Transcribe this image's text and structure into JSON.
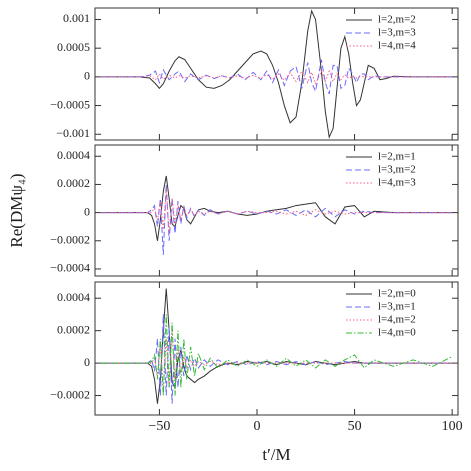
{
  "chart_data": [
    {
      "type": "line",
      "xlim": [
        -83,
        103
      ],
      "ylim": [
        -0.0011,
        0.0012
      ],
      "xticks": [
        -50,
        0,
        50,
        100
      ],
      "yticks": [
        {
          "value": -0.001,
          "label": "−0.001"
        },
        {
          "value": -0.0005,
          "label": "−0.0005"
        },
        0,
        0.0005,
        0.001
      ],
      "legend": "upper right",
      "x": [
        -80,
        -60,
        -55,
        -52,
        -50,
        -48,
        -45,
        -42,
        -40,
        -37,
        -34,
        -30,
        -26,
        -22,
        -18,
        -14,
        -10,
        -6,
        -2,
        2,
        5,
        8,
        11,
        14,
        17,
        20,
        23,
        26,
        28,
        30,
        33,
        35,
        37,
        39,
        41,
        43,
        45,
        47,
        49,
        51,
        53,
        55,
        57,
        60,
        63,
        66,
        70,
        80,
        90,
        100
      ],
      "series": [
        {
          "name": "l=2,m=2",
          "color": "#333333",
          "dash": "solid",
          "values": [
            0,
            0,
            -2e-05,
            -0.00012,
            -0.0002,
            -0.00012,
            0.0001,
            0.00028,
            0.00035,
            0.0003,
            0.00015,
            -5e-05,
            -0.00018,
            -0.0002,
            -0.00015,
            -5e-05,
            0.0001,
            0.00025,
            0.0004,
            0.00045,
            0.0004,
            0.0002,
            -0.0001,
            -0.0005,
            -0.0008,
            -0.0007,
            -0.0001,
            0.0008,
            0.00115,
            0.001,
            0.0001,
            -0.0006,
            -0.00105,
            -0.0009,
            -0.0002,
            0.0005,
            0.0007,
            0.0004,
            -0.0001,
            -0.0005,
            -0.0004,
            -0.0001,
            0.0002,
            0.00015,
            -5e-05,
            -3e-05,
            1e-05,
            0,
            0,
            0
          ]
        },
        {
          "name": "l=3,m=3",
          "color": "#6a6aff",
          "dash": "dashed",
          "values": [
            0,
            0,
            3e-05,
            0.0001,
            -0.0001,
            0.00012,
            -5e-05,
            5e-05,
            0.0001,
            -8e-05,
            5e-05,
            -5e-05,
            3e-05,
            -3e-05,
            2e-05,
            -2e-05,
            5e-05,
            -5e-05,
            8e-05,
            -5e-05,
            0.0001,
            -0.0001,
            0.00012,
            -0.00015,
            0.0001,
            0.00018,
            -0.0002,
            0.00025,
            -0.0001,
            -0.00025,
            0.0003,
            -0.0001,
            -0.0003,
            0.0002,
            0.0002,
            -0.0002,
            -0.00015,
            0.00015,
            5e-05,
            -0.0001,
            5e-05,
            5e-05,
            -5e-05,
            2e-05,
            0,
            0,
            0,
            0,
            0,
            0
          ]
        },
        {
          "name": "l=4,m=4",
          "color": "#ff5a80",
          "dash": "dotted",
          "values": [
            0,
            0,
            2e-05,
            -5e-05,
            5e-05,
            -4e-05,
            3e-05,
            -2e-05,
            2e-05,
            -2e-05,
            2e-05,
            -2e-05,
            2e-05,
            -2e-05,
            2e-05,
            -2e-05,
            2e-05,
            -3e-05,
            3e-05,
            -3e-05,
            4e-05,
            -4e-05,
            5e-05,
            -6e-05,
            7e-05,
            -8e-05,
            0.0001,
            -0.0001,
            8e-05,
            -0.00012,
            0.0001,
            -8e-05,
            0.0001,
            -8e-05,
            6e-05,
            -5e-05,
            4e-05,
            -3e-05,
            2e-05,
            -2e-05,
            1e-05,
            0,
            0,
            0,
            0,
            0,
            0,
            0,
            0,
            0
          ]
        }
      ]
    },
    {
      "type": "line",
      "ylabel": "Re(DMψ₄)",
      "xlim": [
        -83,
        103
      ],
      "ylim": [
        -0.00045,
        0.00048
      ],
      "xticks": [
        -50,
        0,
        50,
        100
      ],
      "yticks": [
        {
          "value": -0.0004,
          "label": "−0.0004"
        },
        {
          "value": -0.0002,
          "label": "−0.0002"
        },
        0,
        0.0002,
        0.0004
      ],
      "legend": "upper right",
      "x": [
        -80,
        -60,
        -56,
        -54,
        -52.5,
        -51,
        -49.5,
        -48,
        -46.5,
        -45,
        -43.5,
        -42,
        -40.5,
        -39,
        -37.5,
        -36,
        -34,
        -32,
        -30,
        -27,
        -24,
        -20,
        -15,
        -10,
        -5,
        0,
        5,
        10,
        15,
        20,
        25,
        30,
        35,
        40,
        45,
        50,
        55,
        60,
        70,
        80,
        90,
        100
      ],
      "series": [
        {
          "name": "l=2,m=1",
          "color": "#333333",
          "dash": "solid",
          "values": [
            0,
            0,
            0,
            -2e-05,
            -8e-05,
            -0.0002,
            -5e-05,
            0.00015,
            0.00026,
            0.0001,
            -8e-05,
            -0.0001,
            -2e-05,
            5e-05,
            3e-05,
            -5e-05,
            -8e-05,
            -3e-05,
            2e-05,
            3e-05,
            1e-05,
            0,
            1e-05,
            -1e-05,
            -2e-05,
            -1e-05,
            1e-05,
            2e-05,
            3e-05,
            5e-05,
            6e-05,
            7e-05,
            -3e-05,
            -8e-05,
            4e-05,
            5e-05,
            -3e-05,
            1e-05,
            0,
            0,
            0,
            0
          ]
        },
        {
          "name": "l=3,m=2",
          "color": "#6a6aff",
          "dash": "dashed",
          "values": [
            0,
            0,
            0,
            2e-05,
            5e-05,
            -0.0001,
            0.0001,
            -0.0003,
            0.0002,
            -0.0002,
            0.0001,
            -0.00015,
            8e-05,
            -8e-05,
            5e-05,
            -4e-05,
            3e-05,
            -3e-05,
            2e-05,
            -2e-05,
            2e-05,
            -1e-05,
            1e-05,
            -1e-05,
            1e-05,
            -1e-05,
            1e-05,
            -1e-05,
            2e-05,
            -2e-05,
            2e-05,
            -3e-05,
            3e-05,
            -3e-05,
            2e-05,
            -1e-05,
            1e-05,
            0,
            0,
            0,
            0,
            0
          ]
        },
        {
          "name": "l=4,m=3",
          "color": "#ff5a80",
          "dash": "dotted",
          "values": [
            0,
            0,
            0,
            0,
            3e-05,
            -5e-05,
            8e-05,
            -0.00012,
            0.00017,
            -0.00015,
            0.0001,
            -8e-05,
            6e-05,
            -5e-05,
            3e-05,
            -2e-05,
            2e-05,
            -2e-05,
            1e-05,
            -1e-05,
            1e-05,
            -1e-05,
            1e-05,
            -1e-05,
            1e-05,
            0,
            0,
            1e-05,
            -1e-05,
            1e-05,
            -2e-05,
            2e-05,
            -1e-05,
            1e-05,
            -1e-05,
            0,
            0,
            0,
            0,
            0,
            0,
            0
          ]
        }
      ]
    },
    {
      "type": "line",
      "xlabel": "t′/M",
      "xlim": [
        -83,
        103
      ],
      "ylim": [
        -0.00032,
        0.0005
      ],
      "xticks": [
        {
          "value": -50,
          "label": "−50"
        },
        0,
        50,
        100
      ],
      "yticks": [
        {
          "value": -0.0002,
          "label": "−0.0002"
        },
        0,
        0.0002,
        0.0004
      ],
      "legend": "upper right",
      "x": [
        -80,
        -60,
        -56,
        -54,
        -52.5,
        -51,
        -49.5,
        -48,
        -46.5,
        -45,
        -43.5,
        -42,
        -40.5,
        -39,
        -37.5,
        -36,
        -34,
        -32,
        -30,
        -27,
        -24,
        -20,
        -15,
        -10,
        -5,
        0,
        5,
        10,
        15,
        20,
        25,
        30,
        35,
        40,
        45,
        50,
        55,
        60,
        70,
        80,
        90,
        100
      ],
      "series": [
        {
          "name": "l=2,m=0",
          "color": "#333333",
          "dash": "solid",
          "values": [
            0,
            0,
            0,
            -2e-05,
            -0.0001,
            -0.00025,
            -0.0001,
            0.0002,
            0.00046,
            0.0002,
            -0.00012,
            -0.00015,
            2e-05,
            8e-05,
            -2e-05,
            -8e-05,
            -0.0001,
            -0.00012,
            -0.0001,
            -8e-05,
            -5e-05,
            -2e-05,
            0,
            -1e-05,
            1e-05,
            0,
            1e-05,
            -1e-05,
            1e-05,
            0,
            -1e-05,
            1e-05,
            0,
            -1e-05,
            0,
            1e-05,
            0,
            0,
            0,
            0,
            0,
            0
          ]
        },
        {
          "name": "l=3,m=1",
          "color": "#6a6aff",
          "dash": "dashed",
          "values": [
            0,
            0,
            0,
            2e-05,
            -5e-05,
            0.00015,
            -0.0002,
            0.0003,
            -0.0002,
            0.00022,
            -0.00025,
            0.00015,
            -0.00015,
            0.0001,
            -8e-05,
            5e-05,
            -4e-05,
            3e-05,
            -3e-05,
            2e-05,
            -2e-05,
            2e-05,
            -1e-05,
            1e-05,
            -1e-05,
            1e-05,
            -1e-05,
            1e-05,
            -1e-05,
            1e-05,
            -1e-05,
            1e-05,
            -1e-05,
            0,
            1e-05,
            0,
            0,
            0,
            0,
            0,
            0,
            0
          ]
        },
        {
          "name": "l=4,m=2",
          "color": "#ff5a80",
          "dash": "dotted",
          "values": [
            0,
            0,
            0,
            0,
            3e-05,
            -8e-05,
            0.00012,
            -0.00018,
            0.00015,
            -0.00015,
            0.0002,
            -0.0001,
            8e-05,
            -6e-05,
            4e-05,
            -3e-05,
            2e-05,
            -2e-05,
            1e-05,
            -1e-05,
            1e-05,
            -1e-05,
            0,
            0,
            0,
            0,
            0,
            0,
            0,
            0,
            0,
            0,
            0,
            0,
            0,
            0,
            0,
            0,
            0,
            0,
            0,
            0
          ]
        },
        {
          "name": "l=4,m=0",
          "color": "#33bb33",
          "dash": "dashdot",
          "values": [
            0,
            0,
            0,
            1e-05,
            5e-05,
            -0.0001,
            0.00015,
            -0.0002,
            0.0003,
            -0.00015,
            0.00025,
            -0.0002,
            0.0002,
            -0.00015,
            0.00015,
            -0.0001,
            0.0001,
            -8e-05,
            6e-05,
            -4e-05,
            3e-05,
            -3e-05,
            2e-05,
            -2e-05,
            2e-05,
            -2e-05,
            2e-05,
            -2e-05,
            3e-05,
            -2e-05,
            2e-05,
            -3e-05,
            2e-05,
            -2e-05,
            2e-05,
            5e-05,
            -3e-05,
            2e-05,
            -2e-05,
            2e-05,
            -2e-05,
            4e-05
          ]
        }
      ]
    }
  ]
}
